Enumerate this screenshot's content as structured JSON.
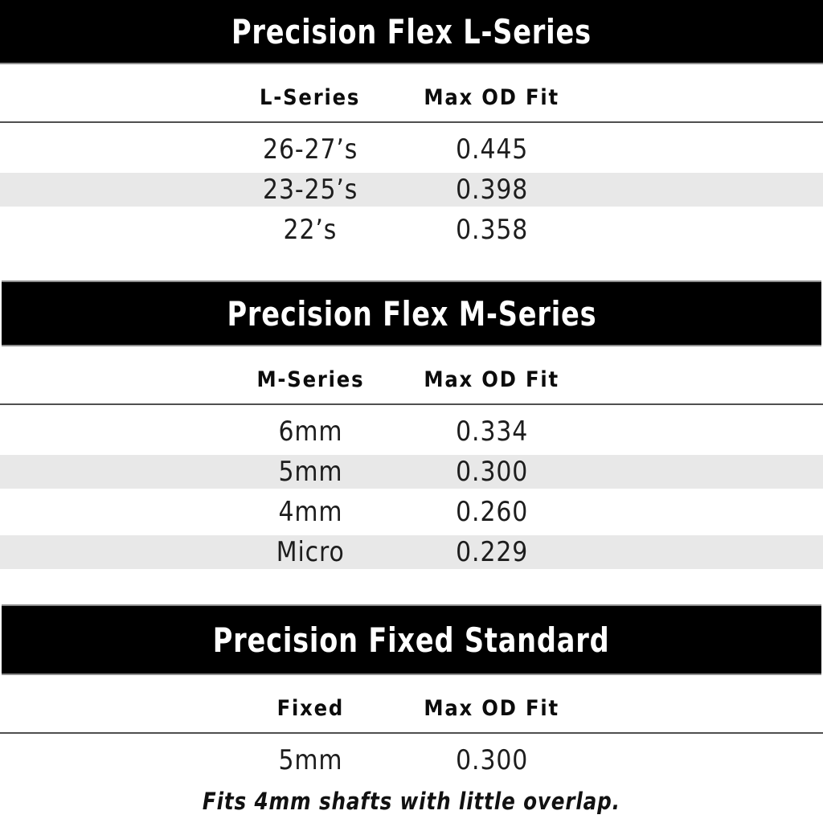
{
  "colors": {
    "banner_bg": "#000000",
    "banner_text": "#ffffff",
    "stripe_gray": "#e8e8e8",
    "header_rule": "#4f4f4f",
    "banner_edge": "#8e8e8e",
    "data_text": "#1d1d1d"
  },
  "tables": [
    {
      "title": "Precision Flex L-Series",
      "col1_header": "L-Series",
      "col2_header": "Max OD Fit",
      "rows": [
        {
          "label": "26-27’s",
          "value": "0.445"
        },
        {
          "label": "23-25’s",
          "value": "0.398"
        },
        {
          "label": "22’s",
          "value": "0.358"
        }
      ]
    },
    {
      "title": "Precision Flex M-Series",
      "col1_header": "M-Series",
      "col2_header": "Max OD Fit",
      "rows": [
        {
          "label": "6mm",
          "value": "0.334"
        },
        {
          "label": "5mm",
          "value": "0.300"
        },
        {
          "label": "4mm",
          "value": "0.260"
        },
        {
          "label": "Micro",
          "value": "0.229"
        }
      ]
    },
    {
      "title": "Precision Fixed Standard",
      "col1_header": "Fixed",
      "col2_header": "Max OD Fit",
      "rows": [
        {
          "label": "5mm",
          "value": "0.300"
        }
      ],
      "footnote": "Fits 4mm shafts with little overlap."
    }
  ]
}
